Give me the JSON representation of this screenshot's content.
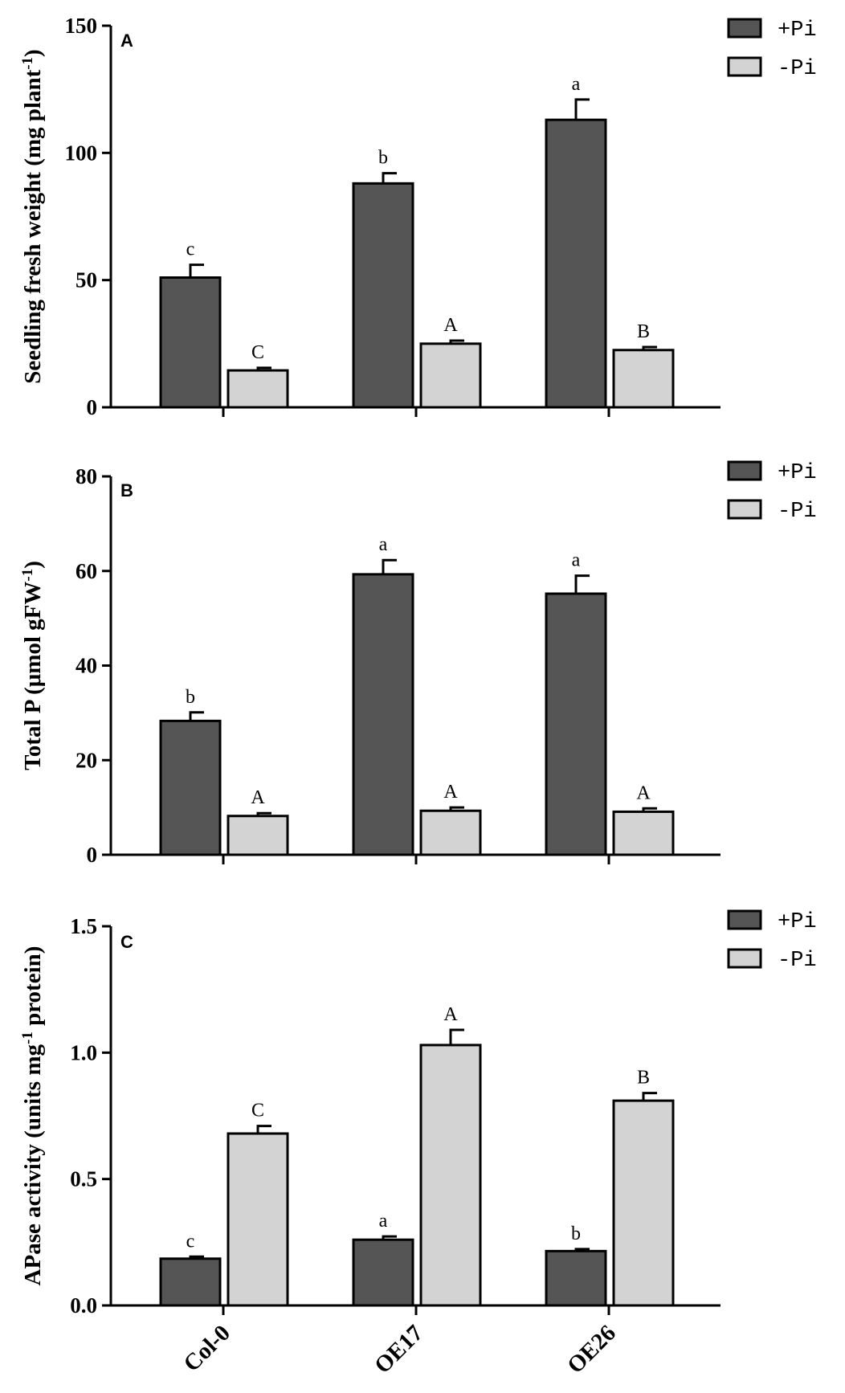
{
  "chart_data": [
    {
      "type": "bar",
      "panel_label": "A",
      "categories": [
        "Col-0",
        "OE17",
        "OE26"
      ],
      "ylabel": "Seedling fresh weight (mg plant",
      "ylabel_sup": "-1",
      "ylabel_end": ")",
      "ylim": [
        0,
        150
      ],
      "yticks": [
        0,
        50,
        100,
        150
      ],
      "series": [
        {
          "name": "+Pi",
          "color": "#555555",
          "values": [
            51,
            88,
            113
          ],
          "errors": [
            5,
            4,
            8
          ],
          "letters": [
            "c",
            "b",
            "a"
          ]
        },
        {
          "name": "-Pi",
          "color": "#d3d3d3",
          "values": [
            14.5,
            25,
            22.5
          ],
          "errors": [
            1,
            1.2,
            1.2
          ],
          "letters": [
            "C",
            "A",
            "B"
          ]
        }
      ]
    },
    {
      "type": "bar",
      "panel_label": "B",
      "categories": [
        "Col-0",
        "OE17",
        "OE26"
      ],
      "ylabel": "Total P (μmol gFW",
      "ylabel_sup": "-1",
      "ylabel_end": ")",
      "ylim": [
        0,
        80
      ],
      "yticks": [
        0,
        20,
        40,
        60,
        80
      ],
      "series": [
        {
          "name": "+Pi",
          "color": "#555555",
          "values": [
            28.3,
            59.3,
            55.2
          ],
          "errors": [
            1.8,
            3,
            3.8
          ],
          "letters": [
            "b",
            "a",
            "a"
          ]
        },
        {
          "name": "-Pi",
          "color": "#d3d3d3",
          "values": [
            8.2,
            9.3,
            9.1
          ],
          "errors": [
            0.6,
            0.7,
            0.7
          ],
          "letters": [
            "A",
            "A",
            "A"
          ]
        }
      ]
    },
    {
      "type": "bar",
      "panel_label": "C",
      "categories": [
        "Col-0",
        "OE17",
        "OE26"
      ],
      "ylabel": "APase activity (units mg",
      "ylabel_sup": "-1",
      "ylabel_end": " protein)",
      "ylim": [
        0,
        1.5
      ],
      "yticks": [
        "0.0",
        "0.5",
        "1.0",
        "1.5"
      ],
      "series": [
        {
          "name": "+Pi",
          "color": "#555555",
          "values": [
            0.185,
            0.26,
            0.215
          ],
          "errors": [
            0.008,
            0.013,
            0.008
          ],
          "letters": [
            "c",
            "a",
            "b"
          ]
        },
        {
          "name": "-Pi",
          "color": "#d3d3d3",
          "values": [
            0.68,
            1.03,
            0.81
          ],
          "errors": [
            0.03,
            0.06,
            0.03
          ],
          "letters": [
            "C",
            "A",
            "B"
          ]
        }
      ]
    }
  ]
}
